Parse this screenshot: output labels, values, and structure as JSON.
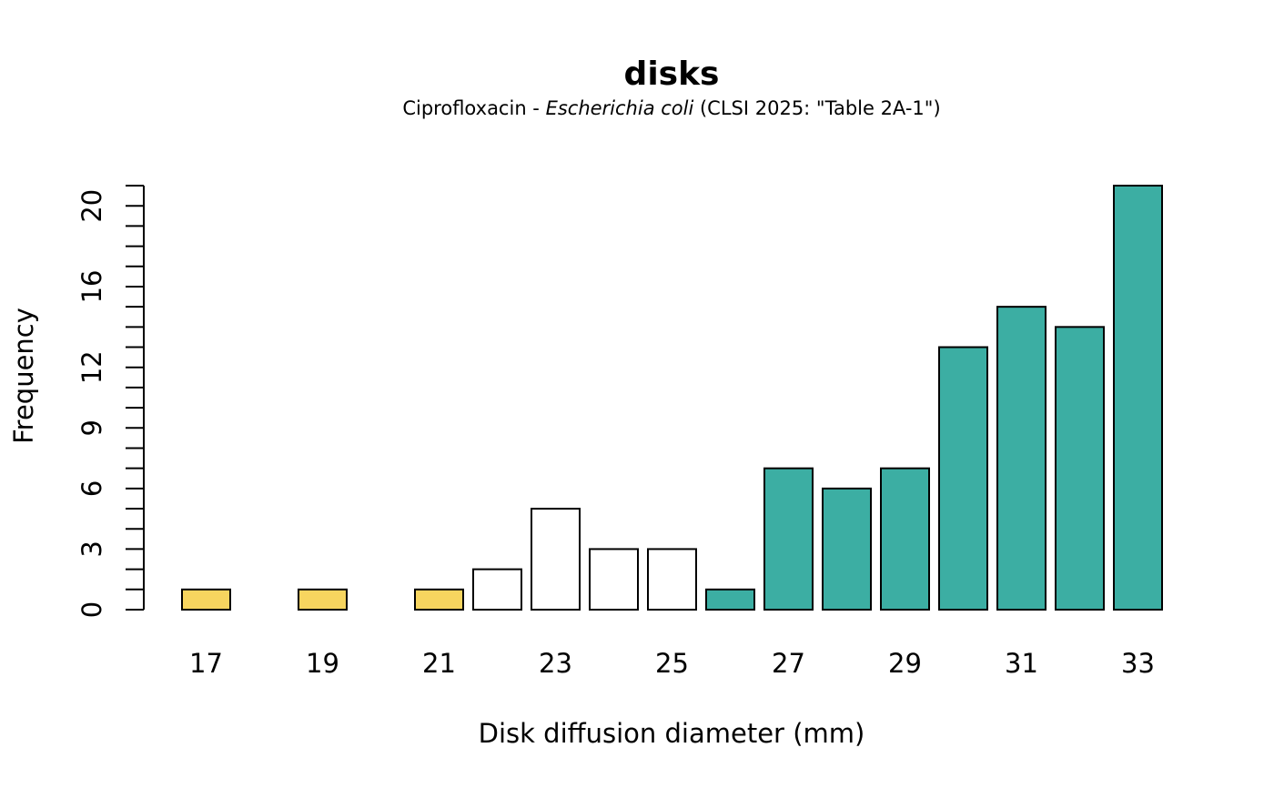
{
  "chart_data": {
    "type": "bar",
    "title": "disks",
    "subtitle": {
      "prefix": "Ciprofloxacin - ",
      "organism": "Escherichia coli",
      "suffix": " (CLSI 2025: \"Table 2A-1\")"
    },
    "xlabel": "Disk diffusion diameter (mm)",
    "ylabel": "Frequency",
    "categories": [
      17,
      18,
      19,
      20,
      21,
      22,
      23,
      24,
      25,
      26,
      27,
      28,
      29,
      30,
      31,
      32,
      33
    ],
    "x_tick_labels": [
      "17",
      "19",
      "21",
      "23",
      "25",
      "27",
      "29",
      "31",
      "33"
    ],
    "values": [
      1,
      0,
      1,
      0,
      1,
      2,
      5,
      3,
      3,
      1,
      7,
      6,
      7,
      13,
      15,
      14,
      21
    ],
    "bar_colors": [
      "#F7D55F",
      "#F7D55F",
      "#F7D55F",
      "#F7D55F",
      "#F7D55F",
      "#FFFFFF",
      "#FFFFFF",
      "#FFFFFF",
      "#FFFFFF",
      "#3CAEA3",
      "#3CAEA3",
      "#3CAEA3",
      "#3CAEA3",
      "#3CAEA3",
      "#3CAEA3",
      "#3CAEA3",
      "#3CAEA3"
    ],
    "y_tick_labels": [
      "0",
      "3",
      "6",
      "9",
      "12",
      "16",
      "20"
    ],
    "y_major_ticks": [
      0,
      3,
      6,
      9,
      12,
      16,
      20
    ],
    "y_minor_ticks": [
      1,
      2,
      4,
      5,
      7,
      8,
      10,
      11,
      13,
      14,
      15,
      17,
      18,
      19,
      21
    ],
    "ylim": [
      0,
      21
    ],
    "grid": false,
    "legend": "none"
  }
}
